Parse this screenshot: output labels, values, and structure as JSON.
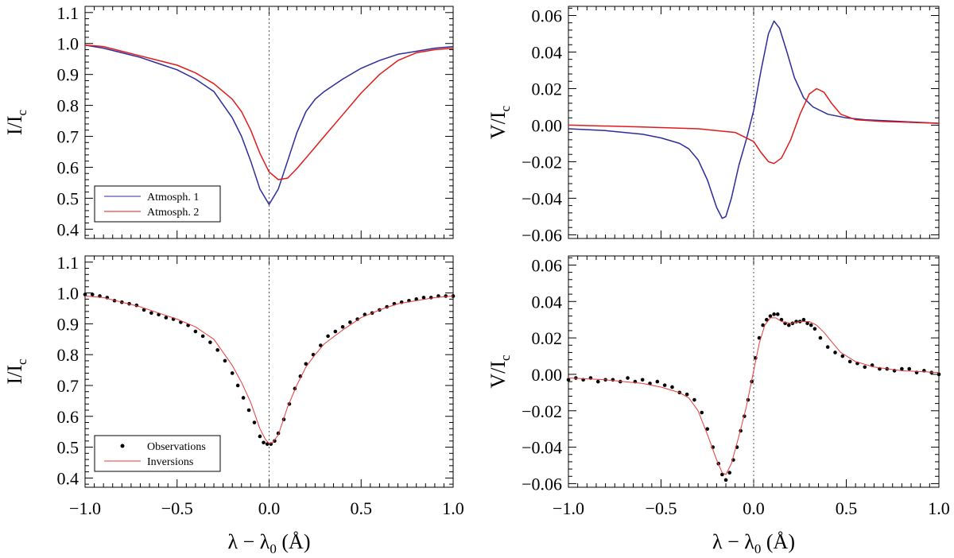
{
  "colors": {
    "atmosph1": "#2b2b9a",
    "atmosph2": "#e01a1a",
    "observations": "#000000",
    "inversions": "#e83a3a",
    "axis": "#000000",
    "zeroline": "#555555"
  },
  "shared": {
    "xlabel_main": "λ − λ",
    "xlabel_sub": "0",
    "xlabel_unit": " (Å)",
    "xlim": [
      -1.0,
      1.0
    ],
    "xticks": [
      "−1.0",
      "−0.5",
      "0.0",
      "0.5",
      "1.0"
    ],
    "xtick_values": [
      -1.0,
      -0.5,
      0.0,
      0.5,
      1.0
    ]
  },
  "chart_data": [
    {
      "id": "top-left",
      "type": "line",
      "ylabel_main": "I/I",
      "ylabel_sub": "c",
      "ylim": [
        0.37,
        1.12
      ],
      "yticks": [
        "0.4",
        "0.5",
        "0.6",
        "0.7",
        "0.8",
        "0.9",
        "1.0",
        "1.1"
      ],
      "ytick_values": [
        0.4,
        0.5,
        0.6,
        0.7,
        0.8,
        0.9,
        1.0,
        1.1
      ],
      "legend": [
        "Atmosph. 1",
        "Atmosph. 2"
      ],
      "legend_position": "bottom-left",
      "series": [
        {
          "name": "Atmosph. 1",
          "color_key": "atmosph1",
          "x": [
            -1.0,
            -0.9,
            -0.8,
            -0.7,
            -0.6,
            -0.5,
            -0.4,
            -0.3,
            -0.2,
            -0.15,
            -0.1,
            -0.05,
            0.0,
            0.05,
            0.1,
            0.15,
            0.2,
            0.25,
            0.3,
            0.4,
            0.5,
            0.6,
            0.7,
            0.8,
            0.9,
            1.0
          ],
          "y": [
            0.995,
            0.985,
            0.97,
            0.955,
            0.935,
            0.915,
            0.885,
            0.845,
            0.76,
            0.7,
            0.62,
            0.53,
            0.48,
            0.53,
            0.62,
            0.71,
            0.78,
            0.82,
            0.845,
            0.885,
            0.92,
            0.945,
            0.965,
            0.975,
            0.985,
            0.99
          ]
        },
        {
          "name": "Atmosph. 2",
          "color_key": "atmosph2",
          "x": [
            -1.0,
            -0.9,
            -0.8,
            -0.7,
            -0.6,
            -0.5,
            -0.4,
            -0.3,
            -0.2,
            -0.15,
            -0.1,
            -0.05,
            0.0,
            0.05,
            0.1,
            0.15,
            0.2,
            0.25,
            0.3,
            0.4,
            0.5,
            0.6,
            0.7,
            0.8,
            0.9,
            1.0
          ],
          "y": [
            0.995,
            0.99,
            0.975,
            0.96,
            0.945,
            0.93,
            0.905,
            0.87,
            0.82,
            0.78,
            0.72,
            0.645,
            0.585,
            0.56,
            0.565,
            0.595,
            0.63,
            0.665,
            0.7,
            0.77,
            0.84,
            0.9,
            0.945,
            0.97,
            0.98,
            0.985
          ]
        }
      ]
    },
    {
      "id": "top-right",
      "type": "line",
      "ylabel_main": "V/I",
      "ylabel_sub": "c",
      "ylim": [
        -0.062,
        0.065
      ],
      "yticks": [
        "−0.06",
        "−0.04",
        "−0.02",
        "0.00",
        "0.02",
        "0.04",
        "0.06"
      ],
      "ytick_values": [
        -0.06,
        -0.04,
        -0.02,
        0.0,
        0.02,
        0.04,
        0.06
      ],
      "series": [
        {
          "name": "Atmosph. 1",
          "color_key": "atmosph1",
          "x": [
            -1.0,
            -0.8,
            -0.6,
            -0.5,
            -0.4,
            -0.35,
            -0.3,
            -0.25,
            -0.2,
            -0.17,
            -0.15,
            -0.12,
            -0.08,
            -0.04,
            0.0,
            0.04,
            0.08,
            0.11,
            0.14,
            0.18,
            0.22,
            0.27,
            0.32,
            0.4,
            0.5,
            0.6,
            0.7,
            0.8,
            0.9,
            1.0
          ],
          "y": [
            -0.002,
            -0.003,
            -0.005,
            -0.007,
            -0.01,
            -0.013,
            -0.019,
            -0.03,
            -0.045,
            -0.051,
            -0.05,
            -0.04,
            -0.022,
            -0.008,
            0.008,
            0.03,
            0.05,
            0.057,
            0.053,
            0.04,
            0.026,
            0.015,
            0.01,
            0.006,
            0.004,
            0.003,
            0.0025,
            0.002,
            0.0015,
            0.001
          ]
        },
        {
          "name": "Atmosph. 2",
          "color_key": "atmosph2",
          "x": [
            -1.0,
            -0.6,
            -0.3,
            -0.1,
            0.0,
            0.04,
            0.08,
            0.11,
            0.15,
            0.2,
            0.25,
            0.3,
            0.34,
            0.38,
            0.42,
            0.47,
            0.55,
            0.7,
            0.85,
            1.0
          ],
          "y": [
            0.0,
            -0.001,
            -0.002,
            -0.004,
            -0.009,
            -0.015,
            -0.02,
            -0.021,
            -0.018,
            -0.008,
            0.006,
            0.017,
            0.02,
            0.018,
            0.012,
            0.006,
            0.003,
            0.002,
            0.0015,
            0.001
          ]
        }
      ]
    },
    {
      "id": "bottom-left",
      "type": "scatter",
      "ylabel_main": "I/I",
      "ylabel_sub": "c",
      "ylim": [
        0.37,
        1.12
      ],
      "yticks": [
        "0.4",
        "0.5",
        "0.6",
        "0.7",
        "0.8",
        "0.9",
        "1.0",
        "1.1"
      ],
      "ytick_values": [
        0.4,
        0.5,
        0.6,
        0.7,
        0.8,
        0.9,
        1.0,
        1.1
      ],
      "legend": [
        "Observations",
        "Inversions"
      ],
      "legend_position": "bottom-left",
      "series": [
        {
          "name": "Observations",
          "color_key": "observations",
          "style": "dots",
          "x": [
            -1.0,
            -0.96,
            -0.92,
            -0.88,
            -0.84,
            -0.8,
            -0.76,
            -0.72,
            -0.68,
            -0.64,
            -0.6,
            -0.56,
            -0.52,
            -0.48,
            -0.44,
            -0.4,
            -0.36,
            -0.32,
            -0.28,
            -0.24,
            -0.2,
            -0.17,
            -0.14,
            -0.11,
            -0.08,
            -0.05,
            -0.03,
            -0.01,
            0.01,
            0.03,
            0.05,
            0.08,
            0.11,
            0.14,
            0.17,
            0.2,
            0.24,
            0.28,
            0.32,
            0.36,
            0.4,
            0.44,
            0.48,
            0.52,
            0.56,
            0.6,
            0.64,
            0.68,
            0.72,
            0.76,
            0.8,
            0.84,
            0.88,
            0.92,
            0.96,
            1.0
          ],
          "y": [
            0.995,
            0.995,
            0.99,
            0.985,
            0.975,
            0.97,
            0.965,
            0.96,
            0.945,
            0.935,
            0.93,
            0.92,
            0.915,
            0.905,
            0.895,
            0.875,
            0.86,
            0.84,
            0.815,
            0.78,
            0.74,
            0.7,
            0.66,
            0.62,
            0.58,
            0.535,
            0.515,
            0.51,
            0.51,
            0.52,
            0.545,
            0.59,
            0.64,
            0.69,
            0.73,
            0.77,
            0.8,
            0.83,
            0.86,
            0.875,
            0.89,
            0.905,
            0.915,
            0.93,
            0.935,
            0.945,
            0.955,
            0.965,
            0.97,
            0.975,
            0.98,
            0.985,
            0.985,
            0.99,
            0.99,
            0.99
          ]
        },
        {
          "name": "Inversions",
          "color_key": "inversions",
          "style": "line",
          "x": [
            -1.0,
            -0.9,
            -0.8,
            -0.7,
            -0.6,
            -0.5,
            -0.4,
            -0.3,
            -0.2,
            -0.15,
            -0.1,
            -0.05,
            -0.02,
            0.0,
            0.02,
            0.05,
            0.1,
            0.15,
            0.2,
            0.25,
            0.3,
            0.4,
            0.5,
            0.6,
            0.7,
            0.8,
            0.9,
            1.0
          ],
          "y": [
            0.99,
            0.985,
            0.97,
            0.955,
            0.935,
            0.915,
            0.89,
            0.85,
            0.765,
            0.71,
            0.645,
            0.56,
            0.525,
            0.512,
            0.515,
            0.54,
            0.63,
            0.7,
            0.76,
            0.8,
            0.835,
            0.88,
            0.92,
            0.945,
            0.965,
            0.975,
            0.985,
            0.99
          ]
        }
      ]
    },
    {
      "id": "bottom-right",
      "type": "scatter",
      "ylabel_main": "V/I",
      "ylabel_sub": "c",
      "ylim": [
        -0.062,
        0.065
      ],
      "yticks": [
        "−0.06",
        "−0.04",
        "−0.02",
        "0.00",
        "0.02",
        "0.04",
        "0.06"
      ],
      "ytick_values": [
        -0.06,
        -0.04,
        -0.02,
        0.0,
        0.02,
        0.04,
        0.06
      ],
      "series": [
        {
          "name": "Observations",
          "color_key": "observations",
          "style": "dots",
          "x": [
            -1.0,
            -0.96,
            -0.92,
            -0.88,
            -0.84,
            -0.8,
            -0.76,
            -0.72,
            -0.68,
            -0.64,
            -0.6,
            -0.56,
            -0.52,
            -0.48,
            -0.44,
            -0.4,
            -0.36,
            -0.32,
            -0.28,
            -0.25,
            -0.22,
            -0.19,
            -0.17,
            -0.15,
            -0.13,
            -0.11,
            -0.09,
            -0.07,
            -0.05,
            -0.03,
            -0.01,
            0.01,
            0.03,
            0.05,
            0.07,
            0.09,
            0.11,
            0.13,
            0.15,
            0.17,
            0.19,
            0.21,
            0.23,
            0.25,
            0.27,
            0.29,
            0.31,
            0.33,
            0.36,
            0.4,
            0.44,
            0.48,
            0.52,
            0.56,
            0.6,
            0.64,
            0.68,
            0.72,
            0.76,
            0.8,
            0.84,
            0.88,
            0.92,
            0.96,
            1.0
          ],
          "y": [
            -0.003,
            -0.002,
            -0.003,
            -0.002,
            -0.004,
            -0.003,
            -0.003,
            -0.004,
            -0.002,
            -0.004,
            -0.003,
            -0.005,
            -0.004,
            -0.006,
            -0.007,
            -0.01,
            -0.011,
            -0.014,
            -0.021,
            -0.03,
            -0.04,
            -0.049,
            -0.055,
            -0.058,
            -0.054,
            -0.047,
            -0.04,
            -0.031,
            -0.023,
            -0.014,
            -0.004,
            0.009,
            0.02,
            0.027,
            0.03,
            0.032,
            0.033,
            0.033,
            0.03,
            0.028,
            0.027,
            0.028,
            0.029,
            0.029,
            0.03,
            0.028,
            0.027,
            0.025,
            0.02,
            0.015,
            0.012,
            0.01,
            0.007,
            0.006,
            0.004,
            0.005,
            0.003,
            0.003,
            0.002,
            0.003,
            0.003,
            0.001,
            0.002,
            0.001,
            0.0
          ]
        },
        {
          "name": "Inversions",
          "color_key": "inversions",
          "style": "line",
          "x": [
            -1.0,
            -0.8,
            -0.6,
            -0.5,
            -0.4,
            -0.35,
            -0.3,
            -0.25,
            -0.2,
            -0.17,
            -0.15,
            -0.12,
            -0.08,
            -0.04,
            0.0,
            0.03,
            0.06,
            0.09,
            0.12,
            0.15,
            0.2,
            0.25,
            0.3,
            0.34,
            0.38,
            0.42,
            0.47,
            0.55,
            0.65,
            0.8,
            1.0
          ],
          "y": [
            -0.002,
            -0.003,
            -0.005,
            -0.007,
            -0.01,
            -0.013,
            -0.02,
            -0.033,
            -0.047,
            -0.054,
            -0.055,
            -0.049,
            -0.034,
            -0.018,
            0.002,
            0.017,
            0.027,
            0.031,
            0.031,
            0.029,
            0.028,
            0.029,
            0.029,
            0.027,
            0.023,
            0.018,
            0.012,
            0.007,
            0.004,
            0.002,
            0.001
          ]
        }
      ]
    }
  ]
}
